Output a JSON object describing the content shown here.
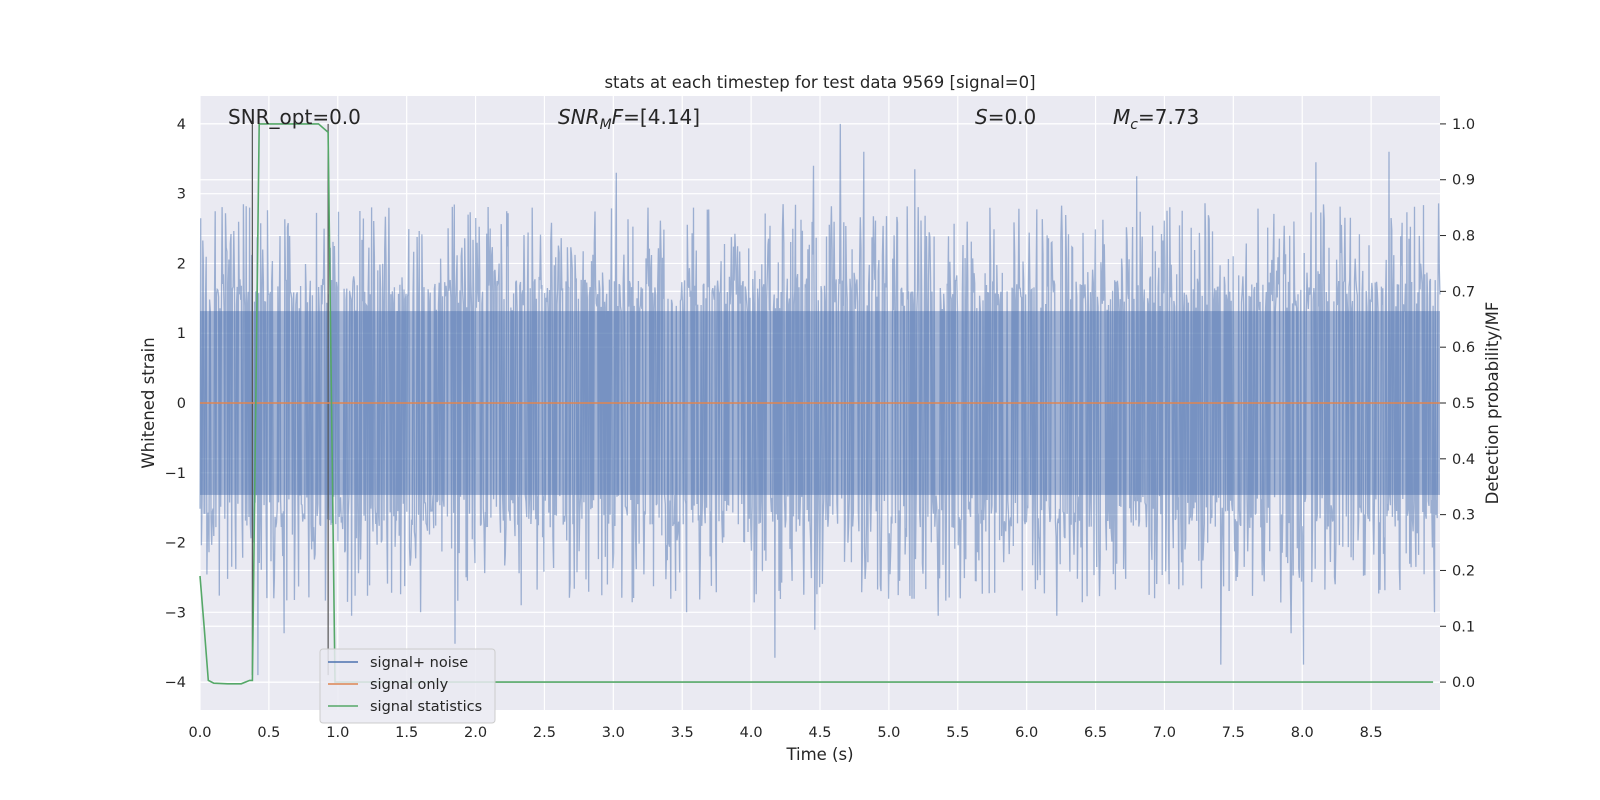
{
  "chart_data": {
    "type": "line",
    "title": "stats at each timestep for test data 9569 [signal=0]",
    "xlabel": "Time (s)",
    "ylabel_left": "Whitened strain",
    "ylabel_right": "Detection probability/MF",
    "xlim": [
      0.0,
      9.0
    ],
    "ylim_left": [
      -4.4,
      4.4
    ],
    "ylim_right": [
      -0.05,
      1.05
    ],
    "x_ticks": [
      0.0,
      0.5,
      1.0,
      1.5,
      2.0,
      2.5,
      3.0,
      3.5,
      4.0,
      4.5,
      5.0,
      5.5,
      6.0,
      6.5,
      7.0,
      7.5,
      8.0,
      8.5
    ],
    "x_tick_labels": [
      "0.0",
      "0.5",
      "1.0",
      "1.5",
      "2.0",
      "2.5",
      "3.0",
      "3.5",
      "4.0",
      "4.5",
      "5.0",
      "5.5",
      "6.0",
      "6.5",
      "7.0",
      "7.5",
      "8.0",
      "8.5"
    ],
    "y_left_ticks": [
      -4,
      -3,
      -2,
      -1,
      0,
      1,
      2,
      3,
      4
    ],
    "y_left_tick_labels": [
      "−4",
      "−3",
      "−2",
      "−1",
      "0",
      "1",
      "2",
      "3",
      "4"
    ],
    "y_right_ticks": [
      0.0,
      0.1,
      0.2,
      0.3,
      0.4,
      0.5,
      0.6,
      0.7,
      0.8,
      0.9,
      1.0
    ],
    "y_right_tick_labels": [
      "0.0",
      "0.1",
      "0.2",
      "0.3",
      "0.4",
      "0.5",
      "0.6",
      "0.7",
      "0.8",
      "0.9",
      "1.0"
    ],
    "grid": true,
    "legend_position": "bottom-left",
    "annotations": {
      "snr_opt": "SNR_opt=0.0",
      "snr_mf": "=[4.14]",
      "s": "=0.0",
      "mc": "=7.73"
    },
    "vertical_markers_x": [
      0.38,
      0.93
    ],
    "series": [
      {
        "name": "signal+ noise",
        "color": "#4c72b0",
        "axis": "left",
        "description_type": "noise",
        "noise_envelope": {
          "core_abs": 1.55,
          "typical_peak": 2.6
        },
        "peaks": [
          {
            "x": 0.36,
            "y": 2.8
          },
          {
            "x": 0.42,
            "y": -3.9
          },
          {
            "x": 0.61,
            "y": -3.3
          },
          {
            "x": 0.9,
            "y": 2.5
          },
          {
            "x": 1.1,
            "y": -3.05
          },
          {
            "x": 1.6,
            "y": -3.0
          },
          {
            "x": 1.85,
            "y": -3.45
          },
          {
            "x": 2.33,
            "y": -2.9
          },
          {
            "x": 3.02,
            "y": 3.3
          },
          {
            "x": 3.25,
            "y": 2.8
          },
          {
            "x": 3.53,
            "y": -3.0
          },
          {
            "x": 4.17,
            "y": -3.65
          },
          {
            "x": 4.45,
            "y": 3.4
          },
          {
            "x": 4.46,
            "y": -3.25
          },
          {
            "x": 4.65,
            "y": 4.0
          },
          {
            "x": 4.82,
            "y": 3.6
          },
          {
            "x": 5.19,
            "y": 3.35
          },
          {
            "x": 5.36,
            "y": -3.05
          },
          {
            "x": 5.52,
            "y": -2.8
          },
          {
            "x": 6.22,
            "y": -3.05
          },
          {
            "x": 6.8,
            "y": 3.25
          },
          {
            "x": 7.41,
            "y": -3.75
          },
          {
            "x": 7.92,
            "y": -3.3
          },
          {
            "x": 8.01,
            "y": -3.75
          },
          {
            "x": 8.1,
            "y": 3.45
          },
          {
            "x": 8.63,
            "y": 3.6
          },
          {
            "x": 8.96,
            "y": -3.0
          }
        ]
      },
      {
        "name": "signal only",
        "color": "#dd8452",
        "axis": "left",
        "x": [
          0.0,
          9.0
        ],
        "y": [
          0.0,
          0.0
        ]
      },
      {
        "name": "signal statistics",
        "color": "#55a868",
        "axis": "right",
        "x": [
          0.0,
          0.03,
          0.06,
          0.1,
          0.2,
          0.3,
          0.36,
          0.38,
          0.43,
          0.5,
          0.6,
          0.7,
          0.8,
          0.86,
          0.93,
          0.98,
          1.0,
          1.05,
          1.5,
          2.0,
          3.0,
          4.0,
          5.0,
          6.0,
          7.0,
          8.0,
          8.95
        ],
        "y": [
          0.19,
          0.1,
          0.003,
          -0.002,
          -0.003,
          -0.003,
          0.003,
          0.003,
          1.0,
          1.0,
          1.0,
          1.0,
          1.0,
          1.0,
          0.985,
          0.0,
          0.0,
          0.0,
          0.0,
          0.0,
          0.0,
          0.0,
          0.0,
          0.0,
          0.0,
          0.0,
          0.0
        ]
      }
    ]
  }
}
